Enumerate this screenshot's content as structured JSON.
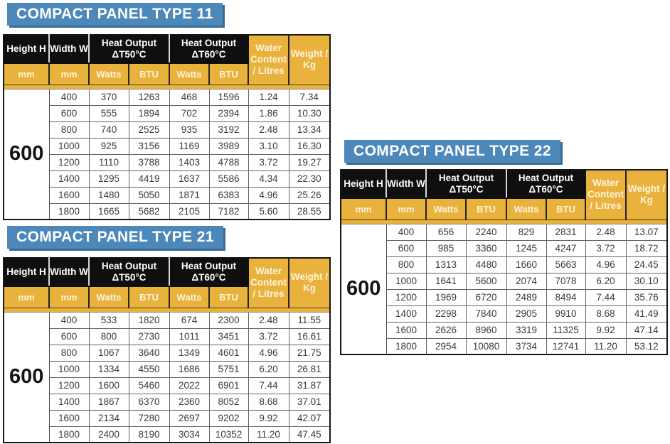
{
  "colors": {
    "blue": "#4d88ba",
    "blue-shadow": "#3a6b95",
    "yellow": "#e9b23d",
    "black-cell": "#0f0f0f"
  },
  "header": {
    "height_label": "Height H",
    "width_label": "Width W",
    "heat50_line1": "Heat Output",
    "heat50_line2": "ΔT50°C",
    "heat60_line1": "Heat Output",
    "heat60_line2": "ΔT60°C",
    "water_label": "Water Content / Litres",
    "weight_label": "Weight / Kg",
    "mm": "mm",
    "watts": "Watts",
    "btu": "BTU"
  },
  "panels": [
    {
      "title": "COMPACT PANEL TYPE 11",
      "height_mm": "600",
      "rows": [
        [
          "400",
          "370",
          "1263",
          "468",
          "1596",
          "1.24",
          "7.34"
        ],
        [
          "600",
          "555",
          "1894",
          "702",
          "2394",
          "1.86",
          "10.30"
        ],
        [
          "800",
          "740",
          "2525",
          "935",
          "3192",
          "2.48",
          "13.34"
        ],
        [
          "1000",
          "925",
          "3156",
          "1169",
          "3989",
          "3.10",
          "16.30"
        ],
        [
          "1200",
          "1110",
          "3788",
          "1403",
          "4788",
          "3.72",
          "19.27"
        ],
        [
          "1400",
          "1295",
          "4419",
          "1637",
          "5586",
          "4.34",
          "22.30"
        ],
        [
          "1600",
          "1480",
          "5050",
          "1871",
          "6383",
          "4.96",
          "25.26"
        ],
        [
          "1800",
          "1665",
          "5682",
          "2105",
          "7182",
          "5.60",
          "28.55"
        ]
      ]
    },
    {
      "title": "COMPACT PANEL TYPE 21",
      "height_mm": "600",
      "rows": [
        [
          "400",
          "533",
          "1820",
          "674",
          "2300",
          "2.48",
          "11.55"
        ],
        [
          "600",
          "800",
          "2730",
          "1011",
          "3451",
          "3.72",
          "16.61"
        ],
        [
          "800",
          "1067",
          "3640",
          "1349",
          "4601",
          "4.96",
          "21.75"
        ],
        [
          "1000",
          "1334",
          "4550",
          "1686",
          "5751",
          "6.20",
          "26.81"
        ],
        [
          "1200",
          "1600",
          "5460",
          "2022",
          "6901",
          "7.44",
          "31.87"
        ],
        [
          "1400",
          "1867",
          "6370",
          "2360",
          "8052",
          "8.68",
          "37.01"
        ],
        [
          "1600",
          "2134",
          "7280",
          "2697",
          "9202",
          "9.92",
          "42.07"
        ],
        [
          "1800",
          "2400",
          "8190",
          "3034",
          "10352",
          "11.20",
          "47.45"
        ]
      ]
    },
    {
      "title": "COMPACT PANEL TYPE 22",
      "height_mm": "600",
      "rows": [
        [
          "400",
          "656",
          "2240",
          "829",
          "2831",
          "2.48",
          "13.07"
        ],
        [
          "600",
          "985",
          "3360",
          "1245",
          "4247",
          "3.72",
          "18.72"
        ],
        [
          "800",
          "1313",
          "4480",
          "1660",
          "5663",
          "4.96",
          "24.45"
        ],
        [
          "1000",
          "1641",
          "5600",
          "2074",
          "7078",
          "6.20",
          "30.10"
        ],
        [
          "1200",
          "1969",
          "6720",
          "2489",
          "8494",
          "7.44",
          "35.76"
        ],
        [
          "1400",
          "2298",
          "7840",
          "2905",
          "9910",
          "8.68",
          "41.49"
        ],
        [
          "1600",
          "2626",
          "8960",
          "3319",
          "11325",
          "9.92",
          "47.14"
        ],
        [
          "1800",
          "2954",
          "10080",
          "3734",
          "12741",
          "11.20",
          "53.12"
        ]
      ]
    }
  ]
}
